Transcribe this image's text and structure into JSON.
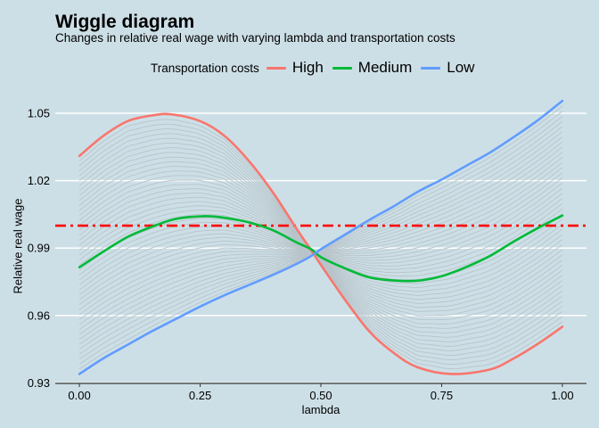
{
  "chart_data": {
    "type": "line",
    "title": "Wiggle diagram",
    "subtitle": "Changes in relative real wage with varying lambda and transportation costs",
    "xlabel": "lambda",
    "ylabel": "Relative real wage",
    "xlim": [
      -0.05,
      1.05
    ],
    "ylim": [
      0.9298,
      1.0615
    ],
    "xticks": [
      "0.00",
      "0.25",
      "0.50",
      "0.75",
      "1.00"
    ],
    "yticks": [
      "0.93",
      "0.96",
      "0.99",
      "1.02",
      "1.05"
    ],
    "legend_title": "Transportation costs",
    "legend_position": "top",
    "reference_line": {
      "y": 1.0,
      "style": "dash-dot",
      "color": "#ff0000"
    },
    "series": [
      {
        "name": "High",
        "color": "#f8766d",
        "x": [
          0,
          0.05,
          0.1,
          0.15,
          0.19,
          0.25,
          0.3,
          0.35,
          0.4,
          0.45,
          0.48,
          0.5,
          0.55,
          0.6,
          0.65,
          0.7,
          0.77,
          0.85,
          0.9,
          0.95,
          1.0
        ],
        "y": [
          1.031,
          1.04,
          1.0465,
          1.049,
          1.0495,
          1.0465,
          1.04,
          1.029,
          1.015,
          0.9985,
          0.989,
          0.9825,
          0.967,
          0.953,
          0.9435,
          0.937,
          0.934,
          0.936,
          0.941,
          0.9475,
          0.955
        ]
      },
      {
        "name": "Medium",
        "color": "#00ba38",
        "x": [
          0,
          0.05,
          0.1,
          0.15,
          0.2,
          0.26,
          0.3,
          0.35,
          0.4,
          0.45,
          0.48,
          0.5,
          0.55,
          0.6,
          0.65,
          0.7,
          0.75,
          0.8,
          0.85,
          0.9,
          0.95,
          1.0
        ],
        "y": [
          0.9815,
          0.9885,
          0.995,
          0.9995,
          1.003,
          1.0042,
          1.0035,
          1.0015,
          0.998,
          0.9925,
          0.9895,
          0.986,
          0.981,
          0.977,
          0.9756,
          0.9755,
          0.9775,
          0.9815,
          0.9865,
          0.993,
          0.999,
          1.0045
        ]
      },
      {
        "name": "Low",
        "color": "#619cff",
        "x": [
          0,
          0.05,
          0.1,
          0.15,
          0.2,
          0.25,
          0.3,
          0.35,
          0.4,
          0.45,
          0.48,
          0.5,
          0.55,
          0.6,
          0.65,
          0.7,
          0.75,
          0.8,
          0.85,
          0.9,
          0.95,
          1.0
        ],
        "y": [
          0.934,
          0.941,
          0.947,
          0.953,
          0.9585,
          0.964,
          0.969,
          0.9735,
          0.978,
          0.983,
          0.9865,
          0.9895,
          0.996,
          1.0025,
          1.0085,
          1.015,
          1.0205,
          1.0265,
          1.0325,
          1.0395,
          1.047,
          1.0555
        ]
      }
    ],
    "grid": true,
    "background_color": "#cddfe6",
    "grid_color": "#ffffff",
    "band_color": "#b8c4ca"
  }
}
